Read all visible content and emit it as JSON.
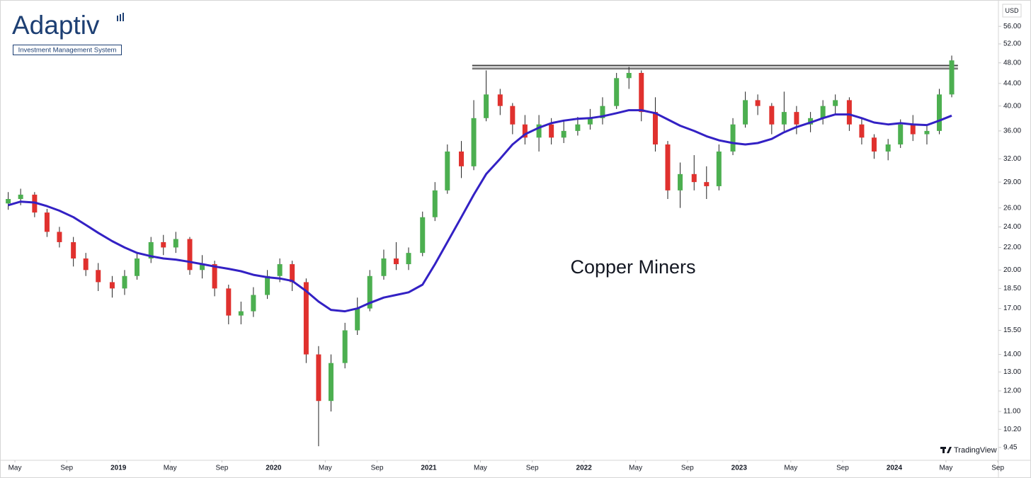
{
  "logo": {
    "name": "Adaptiv",
    "tagline": "Investment Management System"
  },
  "watermark": "TradingView",
  "chart_data": {
    "type": "candlestick",
    "annotation": "Copper Miners",
    "currency": "USD",
    "y_scale": "log",
    "grid": false,
    "up_color": "#4caf50",
    "down_color": "#e0312e",
    "wick_color": "#222222",
    "xlim": [
      2018.237,
      2024.671
    ],
    "ylim": [
      8.95,
      62.6
    ],
    "xticks": [
      {
        "value": 2018.333,
        "label": "May"
      },
      {
        "value": 2018.667,
        "label": "Sep"
      },
      2019,
      {
        "value": 2019.333,
        "label": "May"
      },
      {
        "value": 2019.667,
        "label": "Sep"
      },
      2020,
      {
        "value": 2020.333,
        "label": "May"
      },
      {
        "value": 2020.667,
        "label": "Sep"
      },
      2021,
      {
        "value": 2021.333,
        "label": "May"
      },
      {
        "value": 2021.667,
        "label": "Sep"
      },
      2022,
      {
        "value": 2022.333,
        "label": "May"
      },
      {
        "value": 2022.667,
        "label": "Sep"
      },
      2023,
      {
        "value": 2023.333,
        "label": "May"
      },
      {
        "value": 2023.667,
        "label": "Sep"
      },
      2024,
      {
        "value": 2024.333,
        "label": "May"
      },
      {
        "value": 2024.667,
        "label": "Sep"
      }
    ],
    "yticks": [
      9.45,
      {
        "value": 10.2,
        "label": "10.20"
      },
      {
        "value": 11,
        "label": "11.00"
      },
      {
        "value": 12,
        "label": "12.00"
      },
      {
        "value": 13,
        "label": "13.00"
      },
      {
        "value": 14,
        "label": "14.00"
      },
      {
        "value": 15.5,
        "label": "15.50"
      },
      {
        "value": 17,
        "label": "17.00"
      },
      {
        "value": 18.5,
        "label": "18.50"
      },
      {
        "value": 20,
        "label": "20.00"
      },
      {
        "value": 22,
        "label": "22.00"
      },
      {
        "value": 24,
        "label": "24.00"
      },
      {
        "value": 26,
        "label": "26.00"
      },
      {
        "value": 29,
        "label": "29.00"
      },
      {
        "value": 32,
        "label": "32.00"
      },
      {
        "value": 36,
        "label": "36.00"
      },
      {
        "value": 40,
        "label": "40.00"
      },
      {
        "value": 44,
        "label": "44.00"
      },
      {
        "value": 48,
        "label": "48.00"
      },
      {
        "value": 52,
        "label": "52.00"
      },
      {
        "value": 56,
        "label": "56.00"
      }
    ],
    "x": [
      2018.29,
      2018.37,
      2018.46,
      2018.54,
      2018.62,
      2018.71,
      2018.79,
      2018.87,
      2018.96,
      2019.04,
      2019.12,
      2019.21,
      2019.29,
      2019.37,
      2019.46,
      2019.54,
      2019.62,
      2019.71,
      2019.79,
      2019.87,
      2019.96,
      2020.04,
      2020.12,
      2020.21,
      2020.29,
      2020.37,
      2020.46,
      2020.54,
      2020.62,
      2020.71,
      2020.79,
      2020.87,
      2020.96,
      2021.04,
      2021.12,
      2021.21,
      2021.29,
      2021.37,
      2021.46,
      2021.54,
      2021.62,
      2021.71,
      2021.79,
      2021.87,
      2021.96,
      2022.04,
      2022.12,
      2022.21,
      2022.29,
      2022.37,
      2022.46,
      2022.54,
      2022.62,
      2022.71,
      2022.79,
      2022.87,
      2022.96,
      2023.04,
      2023.12,
      2023.21,
      2023.29,
      2023.37,
      2023.46,
      2023.54,
      2023.62,
      2023.71,
      2023.79,
      2023.87,
      2023.96,
      2024.04,
      2024.12,
      2024.21,
      2024.29,
      2024.37
    ],
    "open": [
      26.5,
      27,
      27.5,
      25.5,
      23.5,
      22.5,
      21,
      20,
      19,
      18.5,
      19.5,
      21,
      22.5,
      22,
      22.8,
      20,
      20.5,
      18.5,
      16.5,
      16.8,
      18,
      19.5,
      20.5,
      19,
      14,
      11.5,
      13.5,
      15.5,
      17,
      19.5,
      21,
      20.5,
      21.5,
      25,
      28,
      33,
      31,
      38,
      42,
      40,
      37,
      35,
      37,
      35,
      36,
      37,
      38,
      40,
      45,
      46,
      39,
      34,
      28,
      30,
      29,
      28.5,
      33,
      37,
      41,
      40,
      37,
      39,
      37,
      38,
      40,
      41,
      37,
      35,
      33,
      34,
      37,
      35.5,
      36,
      42
    ],
    "high": [
      27.8,
      28.2,
      27.8,
      25.9,
      24,
      23,
      21.5,
      20.6,
      19.5,
      20,
      21.5,
      23,
      23.2,
      23.5,
      23,
      21.3,
      20.8,
      18.8,
      17.5,
      18.6,
      20,
      21,
      20.8,
      19.3,
      14.5,
      14,
      16,
      17.8,
      20,
      21.8,
      22.5,
      22,
      25.6,
      29,
      34,
      34.5,
      41,
      46.5,
      43,
      40.5,
      38.5,
      38.5,
      38,
      37.5,
      38.2,
      39.5,
      41.5,
      46,
      47.2,
      46.5,
      41.5,
      34.5,
      31.5,
      32.5,
      31,
      34,
      38,
      42.5,
      42,
      40.5,
      42.5,
      40,
      39,
      41,
      42,
      41.5,
      38,
      35.5,
      34.8,
      37.8,
      38.5,
      37,
      43,
      49.5
    ],
    "low": [
      25.8,
      26.3,
      25,
      23,
      22,
      20.3,
      19.5,
      18.3,
      17.8,
      18,
      19.2,
      20.6,
      21.3,
      21.5,
      19.6,
      19.3,
      17.9,
      15.9,
      15.9,
      16.4,
      17.7,
      19,
      18.3,
      13.5,
      9.5,
      11,
      13.2,
      15.2,
      16.8,
      19.2,
      20,
      20,
      21.2,
      24.6,
      27.6,
      29.5,
      30.5,
      37.5,
      38.5,
      35.5,
      34,
      33,
      34,
      34.2,
      35.3,
      36.2,
      37,
      39.5,
      43,
      37.5,
      33,
      27,
      26,
      28,
      27,
      28,
      32.5,
      36.5,
      38.5,
      35.5,
      36,
      35.5,
      35.8,
      37,
      38.5,
      36,
      34,
      32,
      31.8,
      33.5,
      34.5,
      34,
      35.5,
      41.5
    ],
    "close": [
      27,
      27.5,
      25.5,
      23.5,
      22.5,
      21,
      20,
      19,
      18.5,
      19.5,
      21,
      22.5,
      22,
      22.8,
      20,
      20.5,
      18.5,
      16.5,
      16.8,
      18,
      19.5,
      20.5,
      19,
      14,
      11.5,
      13.5,
      15.5,
      17,
      19.5,
      21,
      20.5,
      21.5,
      25,
      28,
      33,
      31,
      38,
      42,
      40,
      37,
      35,
      37,
      35,
      36,
      37,
      38,
      40,
      45,
      46,
      39,
      34,
      28,
      30,
      29,
      28.5,
      33,
      37,
      41,
      40,
      37,
      39,
      37,
      38,
      40,
      41,
      37,
      35,
      33,
      34,
      37,
      35.5,
      36,
      42,
      48.5
    ],
    "overlays": [
      {
        "type": "line",
        "color": "#3321c4",
        "values": [
          26.3,
          26.7,
          26.6,
          26.2,
          25.7,
          25.0,
          24.2,
          23.4,
          22.6,
          22.0,
          21.5,
          21.2,
          21.0,
          20.9,
          20.7,
          20.5,
          20.3,
          20.1,
          19.9,
          19.6,
          19.4,
          19.3,
          19.1,
          18.3,
          17.5,
          16.9,
          16.8,
          17.0,
          17.4,
          17.8,
          18.0,
          18.2,
          18.8,
          20.5,
          22.5,
          25.0,
          27.5,
          30.0,
          32.0,
          34.0,
          35.5,
          36.5,
          37.2,
          37.6,
          37.9,
          38.0,
          38.3,
          38.8,
          39.3,
          39.3,
          38.8,
          37.8,
          36.8,
          36.0,
          35.2,
          34.6,
          34.2,
          34.0,
          34.2,
          34.8,
          35.8,
          36.6,
          37.3,
          38.0,
          38.6,
          38.6,
          38.0,
          37.3,
          37.0,
          37.2,
          37.0,
          36.9,
          37.6,
          38.4
        ]
      }
    ],
    "band": {
      "x": [
        2021.28,
        2024.41
      ],
      "y": [
        46.8,
        47.5
      ],
      "color": "#c8c8c8"
    }
  }
}
